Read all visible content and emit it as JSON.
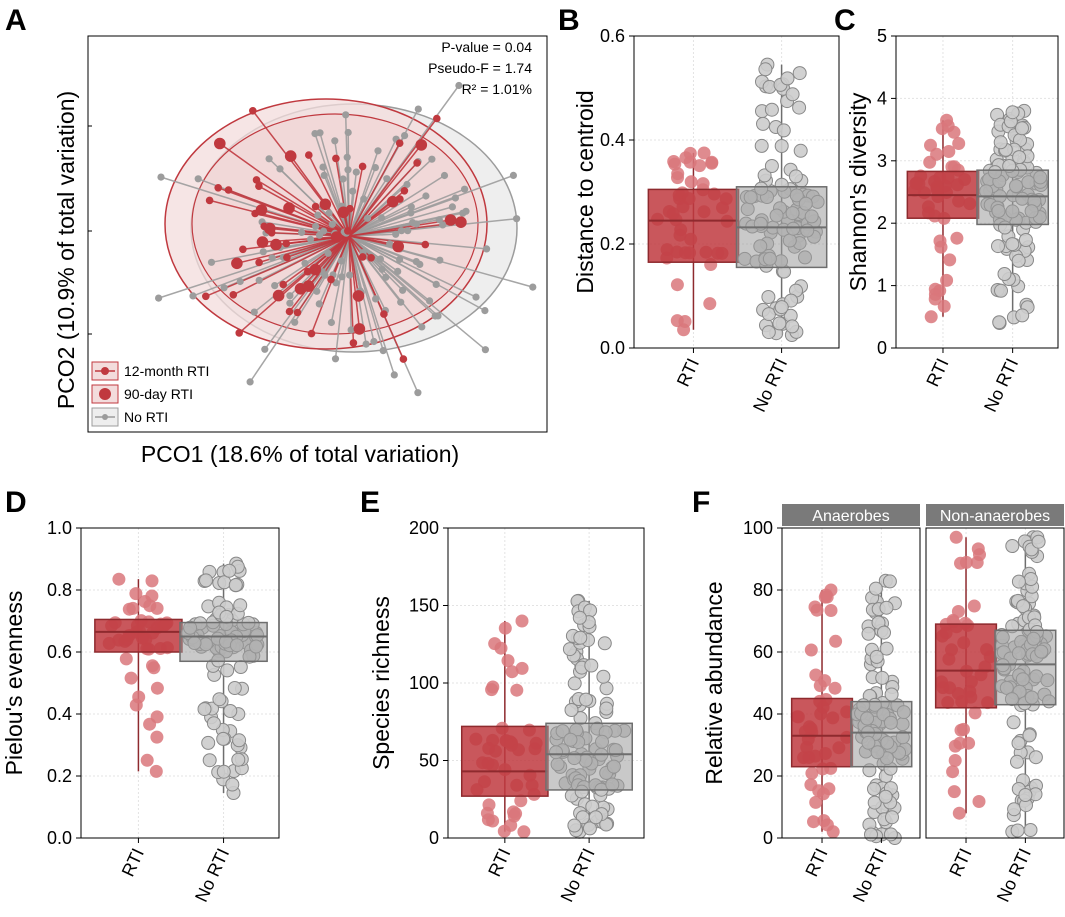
{
  "colors": {
    "rti": "#c0393f",
    "rti_light": "#d9777b",
    "no_rti": "#9c9c9c",
    "no_rti_light": "#cccccc",
    "grid": "#e3e3e3",
    "strip": "#7a7a7a",
    "ellipse_rti_fill": "#f3dcdc",
    "ellipse_no_fill": "#eeeeee"
  },
  "chart_data": [
    {
      "panel": "A",
      "type": "scatter",
      "title": "",
      "xlabel": "PCO1 (18.6% of total variation)",
      "ylabel": "PCO2 (10.9% of total variation)",
      "xlim": [
        -1,
        1
      ],
      "ylim": [
        -1,
        1
      ],
      "annotations": [
        "P-value = 0.04",
        "Pseudo-F = 1.74",
        "R² = 1.01%"
      ],
      "legend": [
        {
          "label": "12-month RTI",
          "marker": "small-red"
        },
        {
          "label": "90-day RTI",
          "marker": "large-red"
        },
        {
          "label": "No RTI",
          "marker": "grey"
        }
      ],
      "centroid": [
        0,
        0
      ]
    },
    {
      "panel": "B",
      "type": "box",
      "categories": [
        "RTI",
        "No RTI"
      ],
      "ylabel": "Distance to centroid",
      "ylim": [
        0,
        0.6
      ],
      "yticks": [
        "0.0",
        "0.2",
        "0.4",
        "0.6"
      ],
      "boxes": [
        {
          "group": "RTI",
          "min": 0.035,
          "q1": 0.165,
          "median": 0.245,
          "q3": 0.305,
          "max": 0.375
        },
        {
          "group": "No RTI",
          "min": 0.025,
          "q1": 0.155,
          "median": 0.232,
          "q3": 0.31,
          "max": 0.545
        }
      ]
    },
    {
      "panel": "C",
      "type": "box",
      "categories": [
        "RTI",
        "No RTI"
      ],
      "ylabel": "Shannon's diversity",
      "ylim": [
        0,
        5
      ],
      "yticks": [
        "0",
        "1",
        "2",
        "3",
        "4",
        "5"
      ],
      "boxes": [
        {
          "group": "RTI",
          "min": 0.5,
          "q1": 2.08,
          "median": 2.45,
          "q3": 2.83,
          "max": 3.65
        },
        {
          "group": "No RTI",
          "min": 0.4,
          "q1": 1.98,
          "median": 2.43,
          "q3": 2.85,
          "max": 3.8
        }
      ]
    },
    {
      "panel": "D",
      "type": "box",
      "categories": [
        "RTI",
        "No RTI"
      ],
      "ylabel": "Pielou's evenness",
      "ylim": [
        0,
        1
      ],
      "yticks": [
        "0.0",
        "0.2",
        "0.4",
        "0.6",
        "0.8",
        "1.0"
      ],
      "boxes": [
        {
          "group": "RTI",
          "min": 0.215,
          "q1": 0.6,
          "median": 0.665,
          "q3": 0.705,
          "max": 0.835
        },
        {
          "group": "No RTI",
          "min": 0.145,
          "q1": 0.57,
          "median": 0.65,
          "q3": 0.695,
          "max": 0.885
        }
      ]
    },
    {
      "panel": "E",
      "type": "box",
      "categories": [
        "RTI",
        "No RTI"
      ],
      "ylabel": "Species richness",
      "ylim": [
        0,
        200
      ],
      "yticks": [
        "0",
        "50",
        "100",
        "150",
        "200"
      ],
      "boxes": [
        {
          "group": "RTI",
          "min": 4,
          "q1": 27,
          "median": 43,
          "q3": 72,
          "max": 140
        },
        {
          "group": "No RTI",
          "min": 4,
          "q1": 31,
          "median": 54,
          "q3": 74,
          "max": 153
        }
      ]
    },
    {
      "panel": "F",
      "type": "box",
      "categories": [
        "RTI",
        "No RTI"
      ],
      "ylabel": "Relative abundance",
      "ylim": [
        0,
        100
      ],
      "yticks": [
        "0",
        "20",
        "40",
        "60",
        "80",
        "100"
      ],
      "facets": [
        "Anaerobes",
        "Non-anaerobes"
      ],
      "boxes": [
        {
          "facet": "Anaerobes",
          "group": "RTI",
          "min": 2,
          "q1": 23,
          "median": 33,
          "q3": 45,
          "max": 80
        },
        {
          "facet": "Anaerobes",
          "group": "No RTI",
          "min": 0,
          "q1": 23,
          "median": 34,
          "q3": 44,
          "max": 83
        },
        {
          "facet": "Non-anaerobes",
          "group": "RTI",
          "min": 8,
          "q1": 42,
          "median": 54,
          "q3": 69,
          "max": 97
        },
        {
          "facet": "Non-anaerobes",
          "group": "No RTI",
          "min": 2,
          "q1": 43,
          "median": 56,
          "q3": 67,
          "max": 97
        }
      ]
    }
  ]
}
